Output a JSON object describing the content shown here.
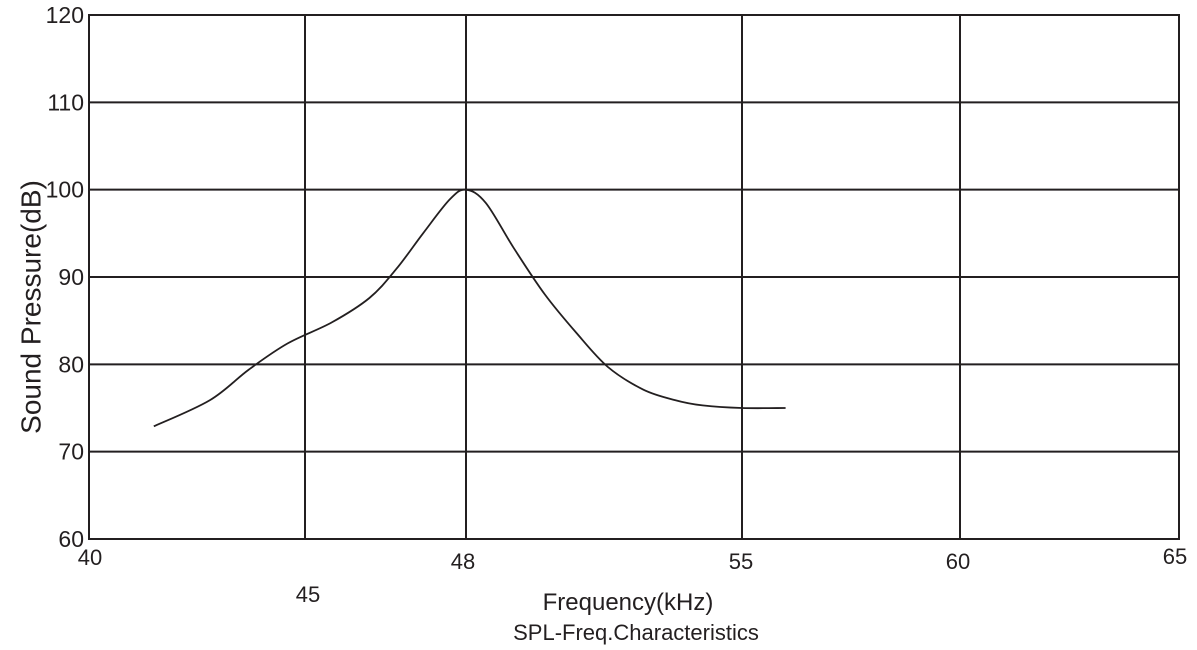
{
  "chart_data": {
    "type": "line",
    "title": "SPL-Freq.Characteristics",
    "xlabel": "Frequency(kHz)",
    "ylabel": "Sound Pressure(dB)",
    "x_ticks": [
      {
        "value": 40,
        "label": "40"
      },
      {
        "value": 45,
        "label": "45"
      },
      {
        "value": 48,
        "label": "48"
      },
      {
        "value": 55,
        "label": "55"
      },
      {
        "value": 60,
        "label": "60"
      },
      {
        "value": 65,
        "label": "65"
      }
    ],
    "y_ticks": [
      {
        "value": 60,
        "label": "60"
      },
      {
        "value": 70,
        "label": "70"
      },
      {
        "value": 80,
        "label": "80"
      },
      {
        "value": 90,
        "label": "90"
      },
      {
        "value": 100,
        "label": "100"
      },
      {
        "value": 110,
        "label": "110"
      },
      {
        "value": 120,
        "label": "120"
      }
    ],
    "ylim": [
      60,
      120
    ],
    "grid": true,
    "series": [
      {
        "points": [
          [
            41.5,
            72.9
          ],
          [
            42.8,
            75.9
          ],
          [
            43.7,
            79.4
          ],
          [
            44.6,
            82.4
          ],
          [
            45.5,
            84.8
          ],
          [
            46.2,
            87.6
          ],
          [
            46.7,
            90.9
          ],
          [
            47.2,
            95.0
          ],
          [
            47.7,
            98.9
          ],
          [
            48.0,
            100.0
          ],
          [
            48.5,
            98.5
          ],
          [
            49.2,
            93.4
          ],
          [
            50.0,
            88.0
          ],
          [
            50.8,
            83.6
          ],
          [
            51.6,
            79.7
          ],
          [
            52.5,
            77.1
          ],
          [
            53.3,
            75.9
          ],
          [
            54.0,
            75.3
          ],
          [
            55.0,
            75.0
          ],
          [
            56.0,
            75.0
          ]
        ]
      }
    ]
  }
}
